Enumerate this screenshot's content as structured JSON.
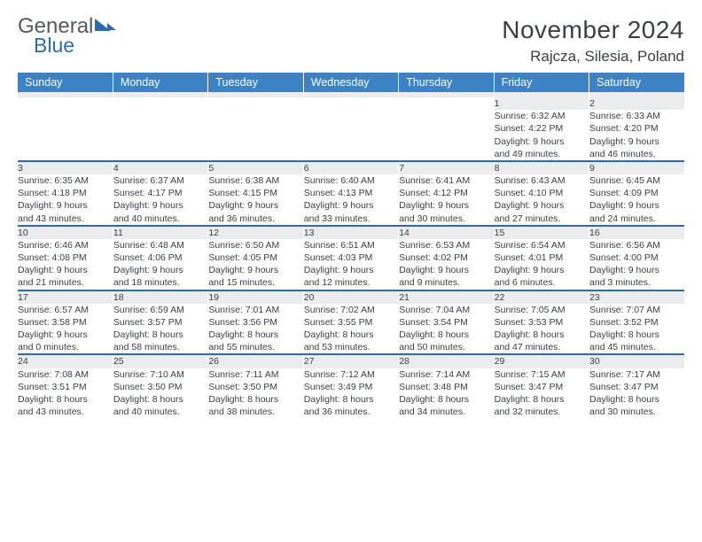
{
  "brand": {
    "line1": "General",
    "line2": "Blue"
  },
  "title": "November 2024",
  "location": "Rajcza, Silesia, Poland",
  "colors": {
    "header_bg": "#3b83c6",
    "header_text": "#ffffff",
    "accent_line": "#2a6cb2",
    "daynum_bg": "#e9ebed",
    "body_text": "#3a3f45",
    "logo_gray": "#555a60",
    "logo_blue": "#2a6cb2",
    "background": "#ffffff"
  },
  "typography": {
    "family": "Arial",
    "title_size_pt": 21,
    "subtitle_size_pt": 13,
    "header_size_pt": 9.5,
    "cell_size_pt": 8
  },
  "weekdays": [
    "Sunday",
    "Monday",
    "Tuesday",
    "Wednesday",
    "Thursday",
    "Friday",
    "Saturday"
  ],
  "weeks": [
    [
      null,
      null,
      null,
      null,
      null,
      {
        "n": "1",
        "sr": "Sunrise: 6:32 AM",
        "ss": "Sunset: 4:22 PM",
        "d1": "Daylight: 9 hours",
        "d2": "and 49 minutes."
      },
      {
        "n": "2",
        "sr": "Sunrise: 6:33 AM",
        "ss": "Sunset: 4:20 PM",
        "d1": "Daylight: 9 hours",
        "d2": "and 46 minutes."
      }
    ],
    [
      {
        "n": "3",
        "sr": "Sunrise: 6:35 AM",
        "ss": "Sunset: 4:18 PM",
        "d1": "Daylight: 9 hours",
        "d2": "and 43 minutes."
      },
      {
        "n": "4",
        "sr": "Sunrise: 6:37 AM",
        "ss": "Sunset: 4:17 PM",
        "d1": "Daylight: 9 hours",
        "d2": "and 40 minutes."
      },
      {
        "n": "5",
        "sr": "Sunrise: 6:38 AM",
        "ss": "Sunset: 4:15 PM",
        "d1": "Daylight: 9 hours",
        "d2": "and 36 minutes."
      },
      {
        "n": "6",
        "sr": "Sunrise: 6:40 AM",
        "ss": "Sunset: 4:13 PM",
        "d1": "Daylight: 9 hours",
        "d2": "and 33 minutes."
      },
      {
        "n": "7",
        "sr": "Sunrise: 6:41 AM",
        "ss": "Sunset: 4:12 PM",
        "d1": "Daylight: 9 hours",
        "d2": "and 30 minutes."
      },
      {
        "n": "8",
        "sr": "Sunrise: 6:43 AM",
        "ss": "Sunset: 4:10 PM",
        "d1": "Daylight: 9 hours",
        "d2": "and 27 minutes."
      },
      {
        "n": "9",
        "sr": "Sunrise: 6:45 AM",
        "ss": "Sunset: 4:09 PM",
        "d1": "Daylight: 9 hours",
        "d2": "and 24 minutes."
      }
    ],
    [
      {
        "n": "10",
        "sr": "Sunrise: 6:46 AM",
        "ss": "Sunset: 4:08 PM",
        "d1": "Daylight: 9 hours",
        "d2": "and 21 minutes."
      },
      {
        "n": "11",
        "sr": "Sunrise: 6:48 AM",
        "ss": "Sunset: 4:06 PM",
        "d1": "Daylight: 9 hours",
        "d2": "and 18 minutes."
      },
      {
        "n": "12",
        "sr": "Sunrise: 6:50 AM",
        "ss": "Sunset: 4:05 PM",
        "d1": "Daylight: 9 hours",
        "d2": "and 15 minutes."
      },
      {
        "n": "13",
        "sr": "Sunrise: 6:51 AM",
        "ss": "Sunset: 4:03 PM",
        "d1": "Daylight: 9 hours",
        "d2": "and 12 minutes."
      },
      {
        "n": "14",
        "sr": "Sunrise: 6:53 AM",
        "ss": "Sunset: 4:02 PM",
        "d1": "Daylight: 9 hours",
        "d2": "and 9 minutes."
      },
      {
        "n": "15",
        "sr": "Sunrise: 6:54 AM",
        "ss": "Sunset: 4:01 PM",
        "d1": "Daylight: 9 hours",
        "d2": "and 6 minutes."
      },
      {
        "n": "16",
        "sr": "Sunrise: 6:56 AM",
        "ss": "Sunset: 4:00 PM",
        "d1": "Daylight: 9 hours",
        "d2": "and 3 minutes."
      }
    ],
    [
      {
        "n": "17",
        "sr": "Sunrise: 6:57 AM",
        "ss": "Sunset: 3:58 PM",
        "d1": "Daylight: 9 hours",
        "d2": "and 0 minutes."
      },
      {
        "n": "18",
        "sr": "Sunrise: 6:59 AM",
        "ss": "Sunset: 3:57 PM",
        "d1": "Daylight: 8 hours",
        "d2": "and 58 minutes."
      },
      {
        "n": "19",
        "sr": "Sunrise: 7:01 AM",
        "ss": "Sunset: 3:56 PM",
        "d1": "Daylight: 8 hours",
        "d2": "and 55 minutes."
      },
      {
        "n": "20",
        "sr": "Sunrise: 7:02 AM",
        "ss": "Sunset: 3:55 PM",
        "d1": "Daylight: 8 hours",
        "d2": "and 53 minutes."
      },
      {
        "n": "21",
        "sr": "Sunrise: 7:04 AM",
        "ss": "Sunset: 3:54 PM",
        "d1": "Daylight: 8 hours",
        "d2": "and 50 minutes."
      },
      {
        "n": "22",
        "sr": "Sunrise: 7:05 AM",
        "ss": "Sunset: 3:53 PM",
        "d1": "Daylight: 8 hours",
        "d2": "and 47 minutes."
      },
      {
        "n": "23",
        "sr": "Sunrise: 7:07 AM",
        "ss": "Sunset: 3:52 PM",
        "d1": "Daylight: 8 hours",
        "d2": "and 45 minutes."
      }
    ],
    [
      {
        "n": "24",
        "sr": "Sunrise: 7:08 AM",
        "ss": "Sunset: 3:51 PM",
        "d1": "Daylight: 8 hours",
        "d2": "and 43 minutes."
      },
      {
        "n": "25",
        "sr": "Sunrise: 7:10 AM",
        "ss": "Sunset: 3:50 PM",
        "d1": "Daylight: 8 hours",
        "d2": "and 40 minutes."
      },
      {
        "n": "26",
        "sr": "Sunrise: 7:11 AM",
        "ss": "Sunset: 3:50 PM",
        "d1": "Daylight: 8 hours",
        "d2": "and 38 minutes."
      },
      {
        "n": "27",
        "sr": "Sunrise: 7:12 AM",
        "ss": "Sunset: 3:49 PM",
        "d1": "Daylight: 8 hours",
        "d2": "and 36 minutes."
      },
      {
        "n": "28",
        "sr": "Sunrise: 7:14 AM",
        "ss": "Sunset: 3:48 PM",
        "d1": "Daylight: 8 hours",
        "d2": "and 34 minutes."
      },
      {
        "n": "29",
        "sr": "Sunrise: 7:15 AM",
        "ss": "Sunset: 3:47 PM",
        "d1": "Daylight: 8 hours",
        "d2": "and 32 minutes."
      },
      {
        "n": "30",
        "sr": "Sunrise: 7:17 AM",
        "ss": "Sunset: 3:47 PM",
        "d1": "Daylight: 8 hours",
        "d2": "and 30 minutes."
      }
    ]
  ]
}
